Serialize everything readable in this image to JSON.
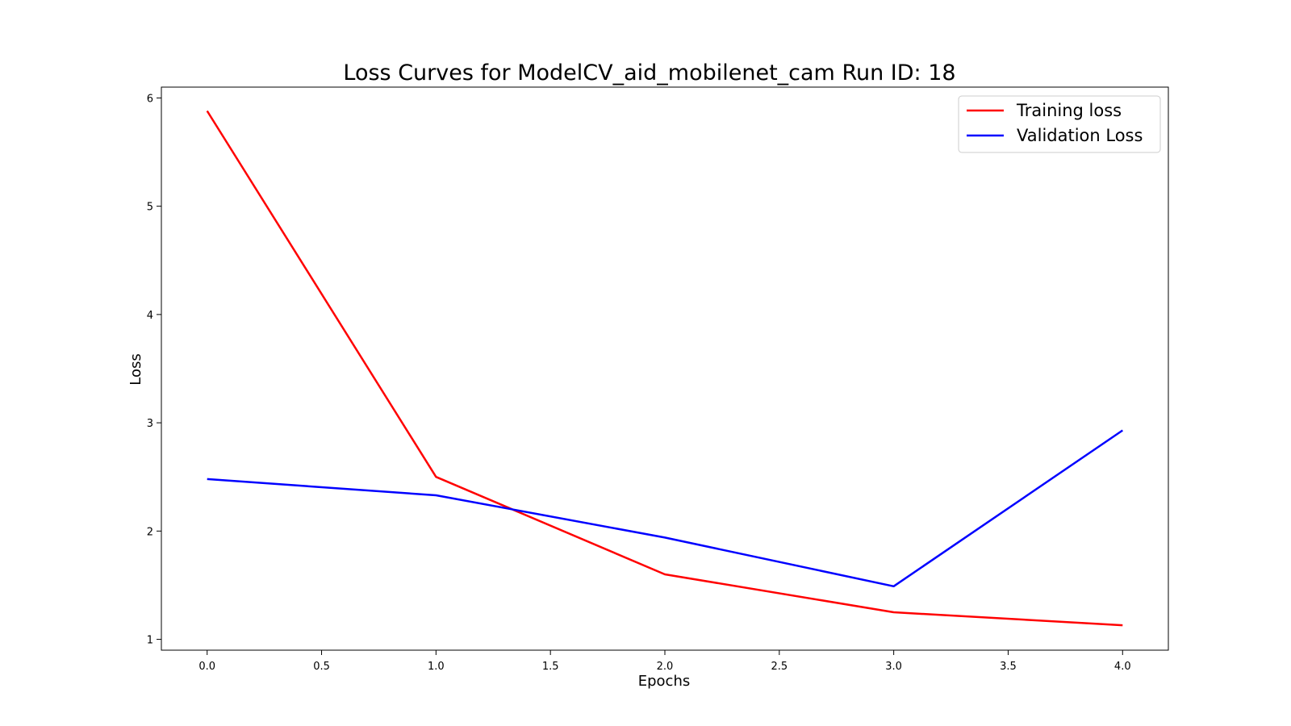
{
  "chart_data": {
    "type": "line",
    "title": "Loss Curves for ModelCV_aid_mobilenet_cam Run ID: 18",
    "xlabel": "Epochs",
    "ylabel": "Loss",
    "xlim": [
      -0.2,
      4.2
    ],
    "ylim": [
      0.9,
      6.1
    ],
    "xticks": [
      0.0,
      0.5,
      1.0,
      1.5,
      2.0,
      2.5,
      3.0,
      3.5,
      4.0
    ],
    "xtick_labels": [
      "0.0",
      "0.5",
      "1.0",
      "1.5",
      "2.0",
      "2.5",
      "3.0",
      "3.5",
      "4.0"
    ],
    "yticks": [
      1,
      2,
      3,
      4,
      5,
      6
    ],
    "ytick_labels": [
      "1",
      "2",
      "3",
      "4",
      "5",
      "6"
    ],
    "grid": false,
    "legend_position": "top-right",
    "x": [
      0,
      1,
      2,
      3,
      4
    ],
    "series": [
      {
        "name": "Training loss",
        "color": "#ff0000",
        "values": [
          5.88,
          2.5,
          1.6,
          1.25,
          1.13
        ]
      },
      {
        "name": "Validation Loss",
        "color": "#0000ff",
        "values": [
          2.48,
          2.33,
          1.94,
          1.49,
          2.93
        ]
      }
    ]
  }
}
